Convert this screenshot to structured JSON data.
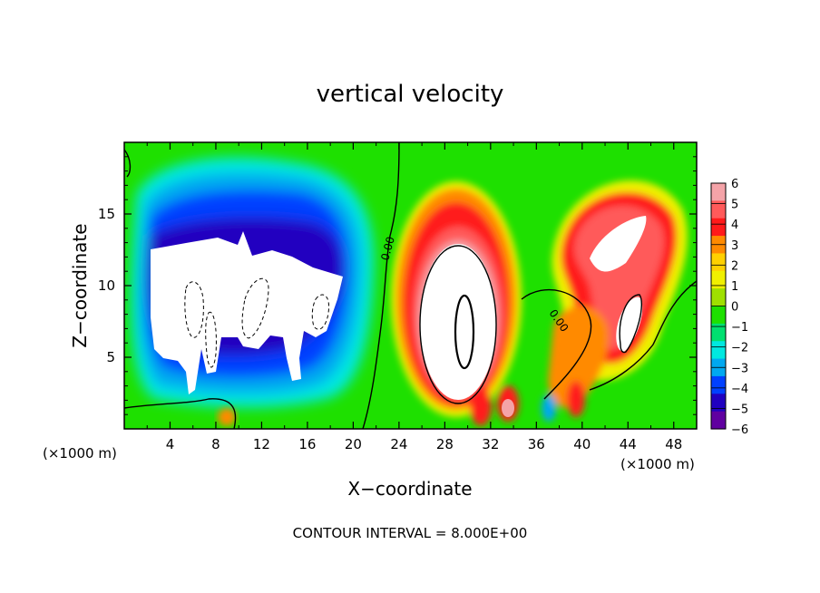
{
  "chart_data": {
    "type": "heatmap",
    "title": "vertical velocity",
    "xlabel": "X−coordinate",
    "ylabel": "Z−coordinate",
    "x_unit_left": "(×1000 m)",
    "x_unit_right": "(×1000 m)",
    "footer": "CONTOUR INTERVAL = 8.000E+00",
    "xlim": [
      0,
      50
    ],
    "ylim": [
      0,
      20
    ],
    "x_ticks": [
      "4",
      "8",
      "12",
      "16",
      "20",
      "24",
      "28",
      "32",
      "36",
      "40",
      "44",
      "48"
    ],
    "y_ticks": [
      "5",
      "10",
      "15"
    ],
    "contour_labels": [
      "0.00",
      "0.00"
    ],
    "colorbar": {
      "min": -6,
      "max": 6,
      "ticks": [
        "6",
        "5",
        "4",
        "3",
        "2",
        "1",
        "0",
        "−1",
        "−2",
        "−3",
        "−4",
        "−5",
        "−6"
      ],
      "colors": [
        "#f4a3a8",
        "#ff5a5a",
        "#ff1a1a",
        "#ff8a00",
        "#ffd000",
        "#f0f000",
        "#9fe000",
        "#1ee000",
        "#00e070",
        "#00e8e0",
        "#00a8f0",
        "#0040ff",
        "#2000c0",
        "#6000a0"
      ]
    },
    "features": [
      {
        "kind": "downdraft",
        "x_range": [
          1,
          20
        ],
        "z_range": [
          1,
          16
        ],
        "note": "strong negative region, values below -6"
      },
      {
        "kind": "updraft",
        "center": [
          29.5,
          8
        ],
        "note": "strong positive cell, values above 6"
      },
      {
        "kind": "updraft",
        "center": [
          44,
          11
        ],
        "note": "positive cell, values above 6"
      }
    ]
  }
}
